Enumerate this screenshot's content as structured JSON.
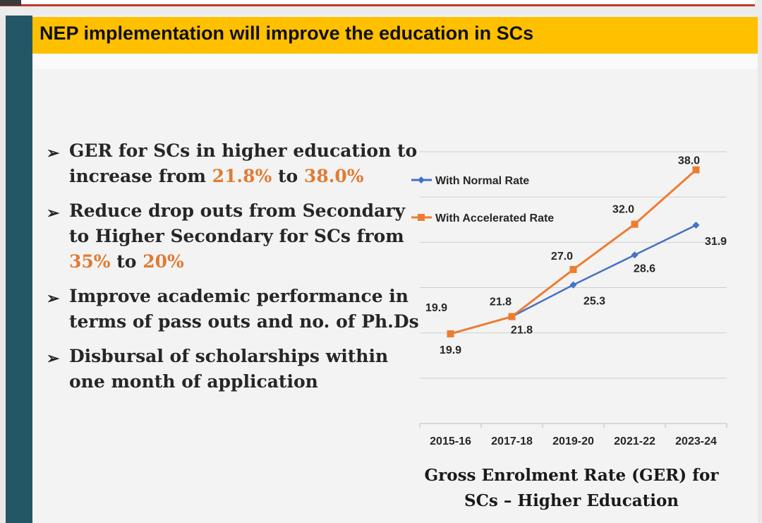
{
  "slide": {
    "title": "NEP implementation will improve the education in SCs",
    "bullets": [
      {
        "parts": [
          {
            "t": "GER for SCs in higher education to increase  from "
          },
          {
            "t": "21.8%",
            "h": true
          },
          {
            "t": " to "
          },
          {
            "t": "38.0%",
            "h": true
          }
        ]
      },
      {
        "parts": [
          {
            "t": "Reduce drop outs from Secondary to Higher Secondary  for SCs from "
          },
          {
            "t": "35%",
            "h": true
          },
          {
            "t": " to "
          },
          {
            "t": "20%",
            "h": true
          }
        ]
      },
      {
        "parts": [
          {
            "t": "Improve academic performance in terms of pass outs and no. of Ph.Ds"
          }
        ]
      },
      {
        "parts": [
          {
            "t": "Disbursal of scholarships within one month of application"
          }
        ]
      }
    ],
    "highlight_color": "#e07b33",
    "caption": "Gross Enrolment Rate (GER) for SCs – Higher Education"
  },
  "chart_data": {
    "type": "line",
    "categories": [
      "2015-16",
      "2017-18",
      "2019-20",
      "2021-22",
      "2023-24"
    ],
    "series": [
      {
        "name": "With Normal Rate",
        "values": [
          19.9,
          21.8,
          25.3,
          28.6,
          31.9
        ],
        "color": "#4472c4",
        "marker": "diamond",
        "labels": [
          "19.9",
          "21.8",
          "25.3",
          "28.6",
          "31.9"
        ]
      },
      {
        "name": "With Accelerated Rate",
        "values": [
          19.9,
          21.8,
          27.0,
          32.0,
          38.0
        ],
        "color": "#ed7d31",
        "marker": "square",
        "labels": [
          "19.9",
          "21.8",
          "27.0",
          "32.0",
          "38.0"
        ]
      }
    ],
    "ylim": [
      10,
      40
    ],
    "gridlines": [
      15,
      20,
      25,
      30,
      35,
      40
    ],
    "grid": true,
    "legend_position": "top-left",
    "title": "Gross Enrolment Rate (GER) for SCs – Higher Education"
  }
}
